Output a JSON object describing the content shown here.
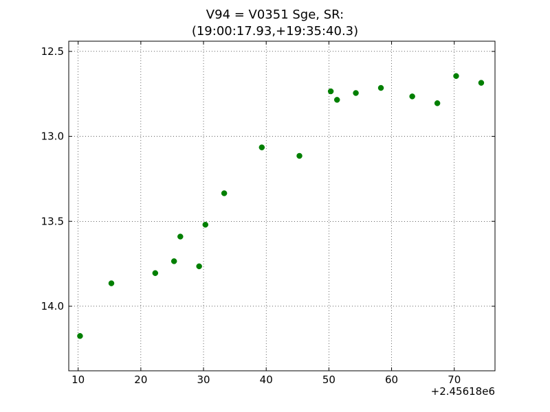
{
  "chart_data": {
    "type": "scatter",
    "title": [
      "V94 = V0351 Sge, SR:",
      "(19:00:17.93,+19:35:40.3)"
    ],
    "xlabel": "",
    "ylabel": "",
    "x_offset_label": "+2.45618e6",
    "xlim": [
      8.5,
      76.5
    ],
    "ylim": [
      14.38,
      12.44
    ],
    "y_inverted": true,
    "xticks": [
      10,
      20,
      30,
      40,
      50,
      60,
      70
    ],
    "yticks": [
      12.5,
      13.0,
      13.5,
      14.0
    ],
    "ytick_labels": [
      "12.5",
      "13.0",
      "13.5",
      "14.0"
    ],
    "grid": true,
    "marker_color": "#007f00",
    "series": [
      {
        "x": [
          10.3,
          15.3,
          22.3,
          25.3,
          26.3,
          29.3,
          30.3,
          33.3,
          39.3,
          45.3,
          50.3,
          51.3,
          54.3,
          58.3,
          63.3,
          67.3,
          70.3,
          74.3
        ],
        "y": [
          14.175,
          13.865,
          13.805,
          13.735,
          13.59,
          13.765,
          13.52,
          13.335,
          13.065,
          13.115,
          12.735,
          12.785,
          12.745,
          12.715,
          12.765,
          12.805,
          12.645,
          12.685
        ]
      }
    ]
  }
}
